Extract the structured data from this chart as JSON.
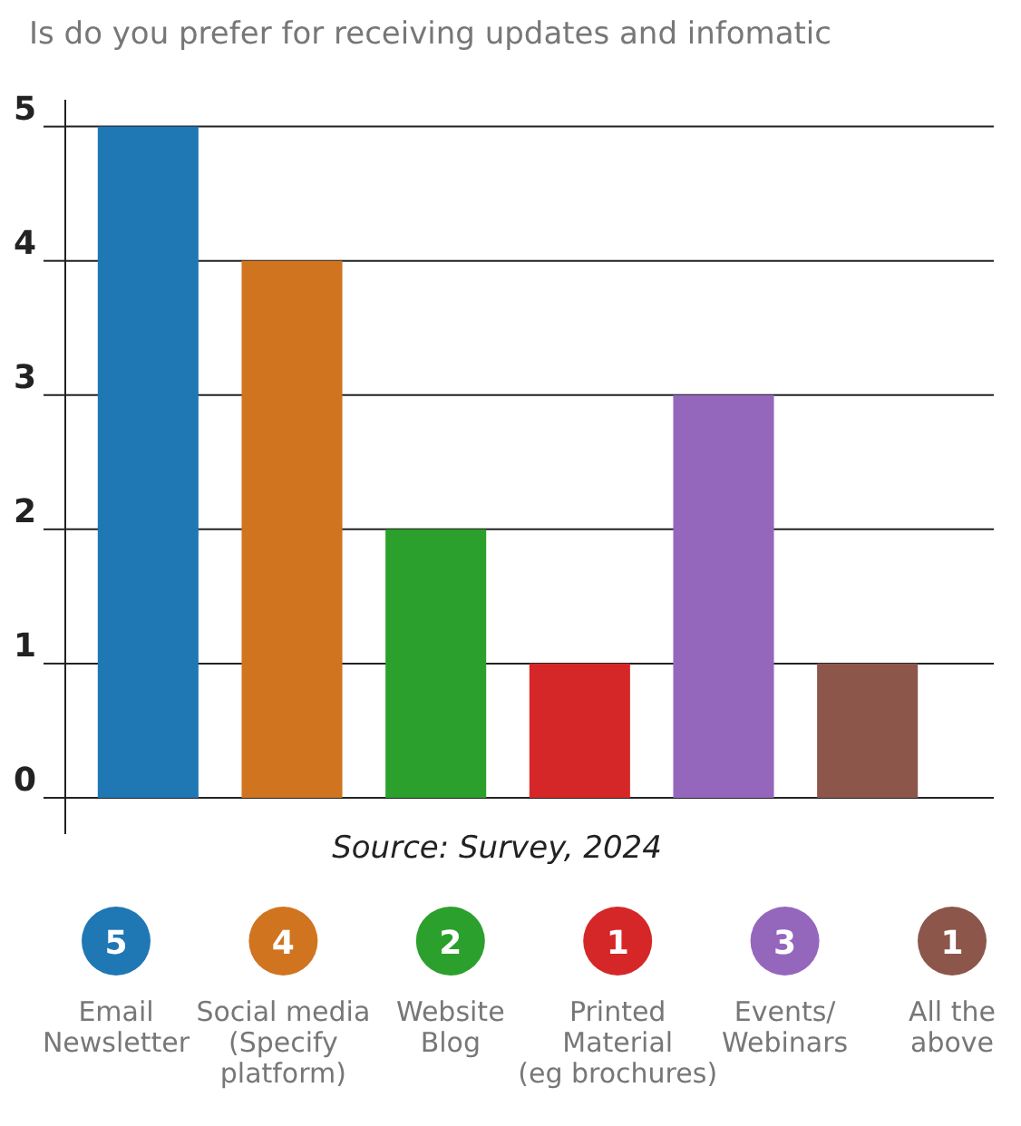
{
  "chart_data": {
    "type": "bar",
    "title": "Is do you prefer for receiving updates and infomatic",
    "categories": [
      "Email\nNewsletter",
      "Social media\n(Specify\nplatform)",
      "Website\nBlog",
      "Printed\nMaterial\n(eg brochures)",
      "Events/\nWebinars",
      "All the\nabove"
    ],
    "values": [
      5,
      4,
      2,
      1,
      3,
      1
    ],
    "colors": [
      "#1f77b4",
      "#d07420",
      "#2ca02c",
      "#d62728",
      "#9467bd",
      "#8c564b"
    ],
    "ylim": [
      0,
      5.2
    ],
    "yticks": [
      0,
      1,
      2,
      3,
      4,
      5
    ],
    "grid": "y",
    "data_labels": true,
    "annotations": [
      "Source: Survey, 2024"
    ]
  }
}
